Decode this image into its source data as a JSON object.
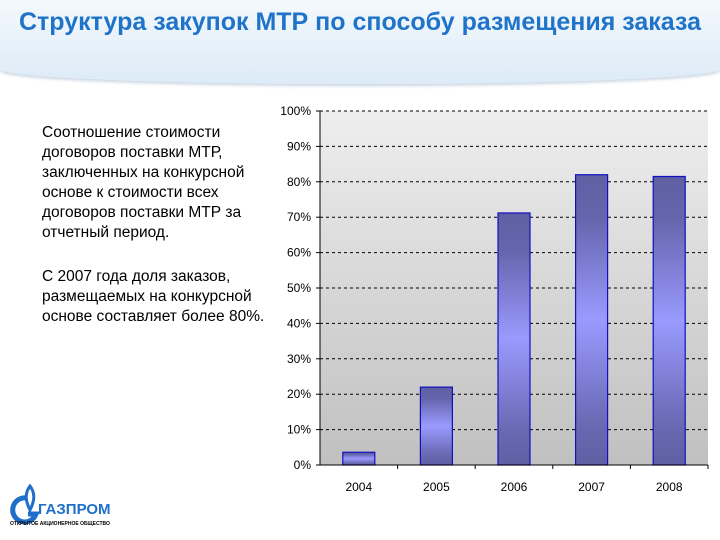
{
  "header": {
    "title": "Структура закупок МТР по способу размещения заказа"
  },
  "text": {
    "paragraph1": "Соотношение стоимости договоров поставки МТР, заключенных на конкурсной основе к стоимости всех договоров поставки МТР за отчетный период.",
    "paragraph2": "С 2007 года доля заказов, размещаемых на конкурсной основе составляет более 80%."
  },
  "logo": {
    "name": "ГАЗПРОМ",
    "subtitle": "ОТКРЫТОЕ АКЦИОНЕРНОЕ ОБЩЕСТВО"
  },
  "chart_data": {
    "type": "bar",
    "title": "",
    "xlabel": "",
    "ylabel": "",
    "categories": [
      "2004",
      "2005",
      "2006",
      "2007",
      "2008"
    ],
    "values": [
      3.6,
      22,
      71.2,
      82,
      81.5
    ],
    "ylim": [
      0,
      100
    ],
    "yticks": [
      "0%",
      "10%",
      "20%",
      "30%",
      "40%",
      "50%",
      "60%",
      "70%",
      "80%",
      "90%",
      "100%"
    ],
    "grid": true,
    "legend": "none",
    "colors": {
      "bar": "#9a9aff",
      "bar_dark": "#5f5fa3",
      "bar_border": "#1010c0"
    }
  }
}
